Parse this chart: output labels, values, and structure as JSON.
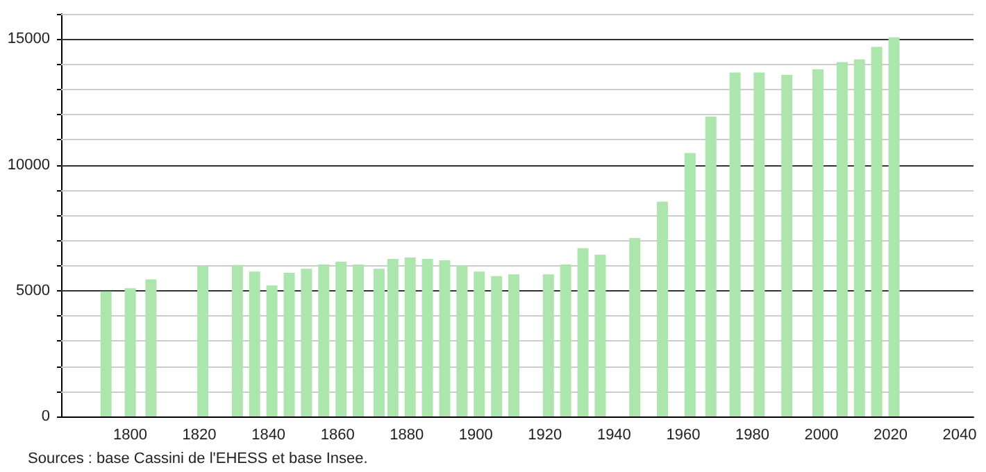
{
  "chart_data": {
    "type": "bar",
    "x": [
      1793,
      1800,
      1806,
      1821,
      1831,
      1836,
      1841,
      1846,
      1851,
      1856,
      1861,
      1866,
      1872,
      1876,
      1881,
      1886,
      1891,
      1896,
      1901,
      1906,
      1911,
      1921,
      1926,
      1931,
      1936,
      1946,
      1954,
      1962,
      1968,
      1975,
      1982,
      1990,
      1999,
      2006,
      2011,
      2016,
      2021
    ],
    "values": [
      4970,
      5100,
      5450,
      5970,
      6020,
      5760,
      5210,
      5710,
      5870,
      6040,
      6150,
      6040,
      5870,
      6260,
      6320,
      6260,
      6210,
      5990,
      5760,
      5580,
      5650,
      5650,
      6040,
      6690,
      6430,
      7090,
      8540,
      10470,
      11920,
      13670,
      13670,
      13580,
      13800,
      14080,
      14190,
      14690,
      15070
    ],
    "color": "#ade6ad",
    "xlim": [
      1780,
      2044
    ],
    "xticks": [
      1800,
      1820,
      1840,
      1860,
      1880,
      1900,
      1920,
      1940,
      1960,
      1980,
      2000,
      2020,
      2040
    ],
    "ylim": [
      0,
      16000
    ],
    "yticks": [
      0,
      {
        "value": 1000,
        "label": null
      },
      {
        "value": 2000,
        "label": null
      },
      {
        "value": 3000,
        "label": null
      },
      {
        "value": 4000,
        "label": null
      },
      5000,
      {
        "value": 6000,
        "label": null
      },
      {
        "value": 7000,
        "label": null
      },
      {
        "value": 8000,
        "label": null
      },
      {
        "value": 9000,
        "label": null
      },
      10000,
      {
        "value": 11000,
        "label": null
      },
      {
        "value": 12000,
        "label": null
      },
      {
        "value": 13000,
        "label": null
      },
      {
        "value": 14000,
        "label": null
      },
      15000,
      {
        "value": 16000,
        "label": null
      }
    ],
    "grid": "y",
    "annotations": [
      "Sources : base Cassini de l'EHESS et base Insee."
    ]
  }
}
